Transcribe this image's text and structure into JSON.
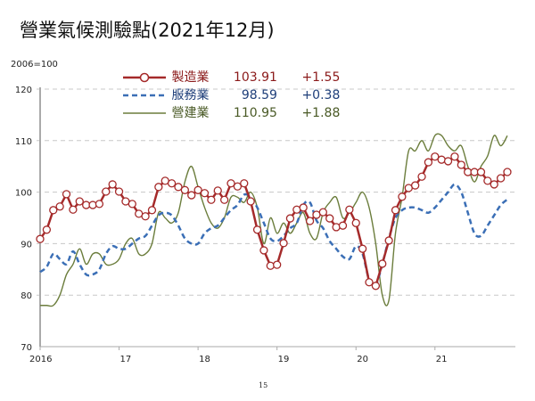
{
  "title": "營業氣候測驗點(2021年12月)",
  "page_number": "15",
  "chart_data": {
    "type": "line",
    "title": "營業氣候測驗點(2021年12月)",
    "ylabel": "2006=100",
    "ylim": [
      70,
      120
    ],
    "yticks": [
      "70",
      "80",
      "90",
      "100",
      "110",
      "120"
    ],
    "xtick_labels": [
      "2016",
      "17",
      "18",
      "19",
      "20",
      "21"
    ],
    "x_range": [
      "2016-01",
      "2021-12"
    ],
    "grid": "horizontal dashed",
    "legend_position": "top",
    "series": [
      {
        "name": "製造業",
        "latest": "103.91",
        "change": "+1.55",
        "color": "#a52a2a",
        "style": "solid-markers",
        "values": [
          90.9,
          92.7,
          96.5,
          97.2,
          99.6,
          96.6,
          98.2,
          97.5,
          97.5,
          97.7,
          100.1,
          101.5,
          100.1,
          98.2,
          97.7,
          95.8,
          95.3,
          96.5,
          101.0,
          102.2,
          101.7,
          101.0,
          100.4,
          99.4,
          100.4,
          99.8,
          98.5,
          100.3,
          98.5,
          101.7,
          101.1,
          101.7,
          98.2,
          92.7,
          88.7,
          85.7,
          85.9,
          90.1,
          94.9,
          96.6,
          97.0,
          94.4,
          95.6,
          96.1,
          94.9,
          93.2,
          93.5,
          96.6,
          94.0,
          89.0,
          82.5,
          81.8,
          86.1,
          90.6,
          96.5,
          99.1,
          100.8,
          101.3,
          103.0,
          105.8,
          106.9,
          106.3,
          106.0,
          106.9,
          105.3,
          103.9,
          103.9,
          103.9,
          102.2,
          101.5,
          102.7,
          103.91
        ]
      },
      {
        "name": "服務業",
        "latest": "98.59",
        "change": "+0.38",
        "color": "#3b6fb6",
        "style": "dashed",
        "values": [
          84.5,
          85.5,
          88,
          87,
          86,
          88.5,
          86,
          84,
          84,
          85,
          88,
          89.5,
          89,
          89,
          90,
          91,
          91.5,
          93.5,
          95.5,
          96,
          95.5,
          93.5,
          91,
          90,
          90,
          92,
          93,
          93.5,
          95,
          96.5,
          97.5,
          99.5,
          99,
          97,
          94,
          91,
          90.5,
          91.5,
          93,
          94,
          97.5,
          98,
          94.5,
          93,
          90.5,
          89,
          87.5,
          87,
          89.5,
          88,
          83,
          82,
          86,
          91,
          95,
          96.5,
          97,
          97,
          96.5,
          96,
          97,
          98.5,
          100,
          101.5,
          100,
          96,
          92,
          91.5,
          93.5,
          95.5,
          97.5,
          98.59
        ]
      },
      {
        "name": "營建業",
        "latest": "110.95",
        "change": "+1.88",
        "color": "#6b7d3c",
        "style": "solid",
        "values": [
          78,
          78,
          78,
          80,
          84,
          86,
          89,
          86,
          88,
          88,
          86,
          86,
          87,
          90,
          91,
          88,
          88,
          90,
          96,
          95,
          94,
          96,
          102,
          105,
          101,
          97,
          94,
          93,
          95,
          99,
          99,
          98,
          100,
          97,
          90,
          95,
          92,
          94,
          92,
          94,
          96,
          92,
          91,
          96,
          98,
          99,
          95,
          96,
          98,
          100,
          97,
          90,
          80,
          79,
          92,
          99,
          108,
          108,
          110,
          108,
          111,
          111,
          109,
          108,
          109,
          105,
          102,
          105,
          107,
          111,
          109,
          110.95
        ]
      }
    ]
  }
}
